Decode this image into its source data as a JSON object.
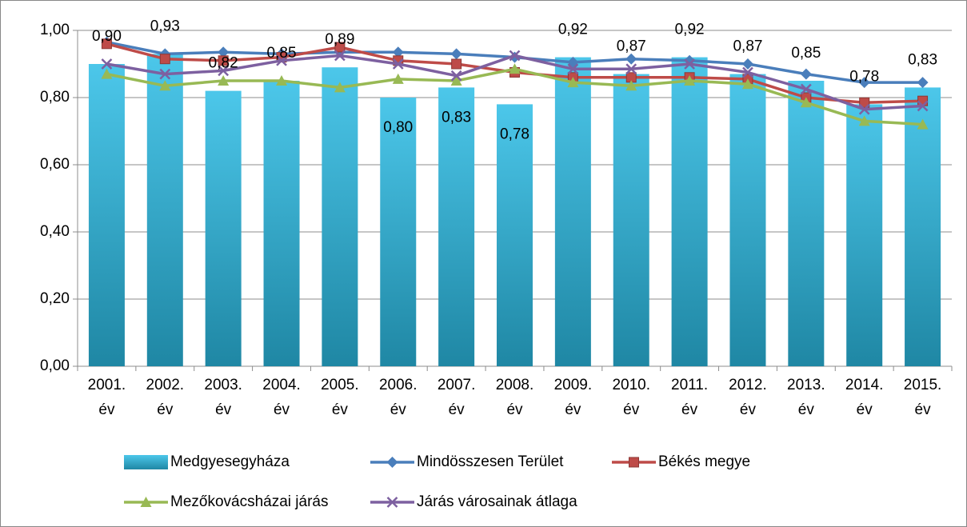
{
  "chart_data": {
    "type": "bar-line",
    "categories": [
      "2001. év",
      "2002. év",
      "2003. év",
      "2004. év",
      "2005. év",
      "2006. év",
      "2007. év",
      "2008. év",
      "2009. év",
      "2010. év",
      "2011. év",
      "2012. év",
      "2013. év",
      "2014. év",
      "2015. év"
    ],
    "ylim": [
      0,
      1
    ],
    "yticks": [
      {
        "value": 0,
        "label": "0,00"
      },
      {
        "value": 0.2,
        "label": "0,20"
      },
      {
        "value": 0.4,
        "label": "0,40"
      },
      {
        "value": 0.6,
        "label": "0,60"
      },
      {
        "value": 0.8,
        "label": "0,80"
      },
      {
        "value": 1,
        "label": "1,00"
      }
    ],
    "grid": true,
    "legend": "bottom",
    "series": [
      {
        "name": "Medgyesegyháza",
        "type": "bar",
        "color": "#35b2d6",
        "values": [
          0.9,
          0.93,
          0.82,
          0.85,
          0.89,
          0.8,
          0.83,
          0.78,
          0.92,
          0.87,
          0.92,
          0.87,
          0.85,
          0.78,
          0.83
        ],
        "value_labels": [
          "0,90",
          "0,93",
          "0,82",
          "0,85",
          "0,89",
          "0,80",
          "0,83",
          "0,78",
          "0,92",
          "0,87",
          "0,92",
          "0,87",
          "0,85",
          "0,78",
          "0,83"
        ]
      },
      {
        "name": "Mindösszesen Terület",
        "type": "line",
        "marker": "diamond",
        "color": "#4a7ebb",
        "values": [
          0.965,
          0.93,
          0.935,
          0.93,
          0.935,
          0.935,
          0.93,
          0.92,
          0.905,
          0.915,
          0.91,
          0.9,
          0.87,
          0.845,
          0.845
        ]
      },
      {
        "name": "Békés megye",
        "type": "line",
        "marker": "square",
        "color": "#be4b48",
        "values": [
          0.96,
          0.915,
          0.91,
          0.92,
          0.95,
          0.91,
          0.9,
          0.875,
          0.86,
          0.86,
          0.86,
          0.855,
          0.8,
          0.785,
          0.79
        ]
      },
      {
        "name": "Mezőkovácsházai járás",
        "type": "line",
        "marker": "triangle",
        "color": "#98b954",
        "values": [
          0.87,
          0.835,
          0.85,
          0.85,
          0.83,
          0.855,
          0.85,
          0.885,
          0.845,
          0.835,
          0.85,
          0.84,
          0.785,
          0.73,
          0.72
        ]
      },
      {
        "name": "Járás városainak átlaga",
        "type": "line",
        "marker": "x",
        "color": "#7d60a0",
        "values": [
          0.9,
          0.87,
          0.88,
          0.91,
          0.925,
          0.9,
          0.865,
          0.925,
          0.885,
          0.885,
          0.9,
          0.875,
          0.825,
          0.765,
          0.775
        ]
      }
    ]
  }
}
